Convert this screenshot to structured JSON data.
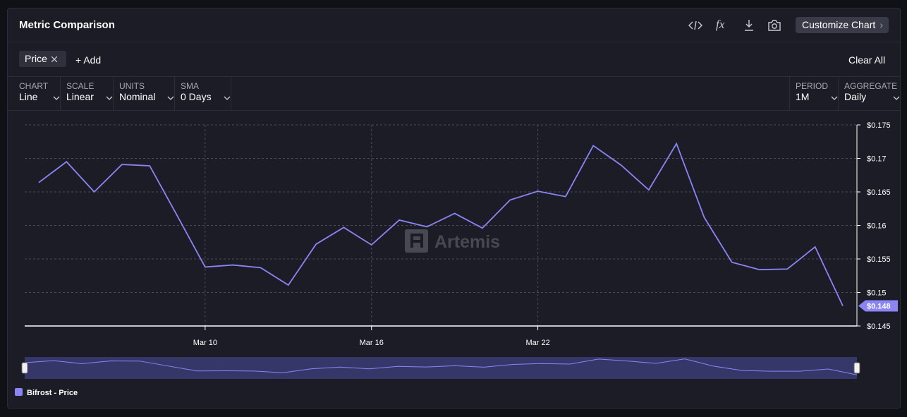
{
  "header": {
    "title": "Metric Comparison",
    "formula_icon": "fx",
    "button": "Customize Chart"
  },
  "filters": {
    "chip": "Price",
    "add": "+ Add",
    "clear": "Clear All"
  },
  "controls": [
    {
      "label": "CHART",
      "value": "Line"
    },
    {
      "label": "SCALE",
      "value": "Linear"
    },
    {
      "label": "UNITS",
      "value": "Nominal"
    },
    {
      "label": "SMA",
      "value": "0 Days"
    },
    {
      "label": "PERIOD",
      "value": "1M"
    },
    {
      "label": "AGGREGATE",
      "value": "Daily"
    }
  ],
  "watermark": "Artemis",
  "chart_data": {
    "type": "line",
    "categories": [
      null,
      null,
      null,
      null,
      null,
      null,
      "Mar 10",
      null,
      null,
      null,
      null,
      null,
      "Mar 16",
      null,
      null,
      null,
      null,
      null,
      "Mar 22",
      null,
      null,
      null,
      null,
      null,
      null,
      null,
      null,
      null,
      null,
      null
    ],
    "series": [
      {
        "name": "Bifrost - Price",
        "color": "#8a84f5",
        "values": [
          0.1664,
          0.1695,
          0.165,
          0.1691,
          0.1689,
          0.1614,
          0.1538,
          0.1541,
          0.1537,
          0.1511,
          0.1572,
          0.1597,
          0.1571,
          0.1608,
          0.1598,
          0.1618,
          0.1596,
          0.1638,
          0.1651,
          0.1643,
          0.1719,
          0.169,
          0.1653,
          0.1722,
          0.1612,
          0.1545,
          0.1534,
          0.1535,
          0.1568,
          0.148
        ],
        "value_labels": [
          null,
          null,
          null,
          null,
          null,
          null,
          null,
          null,
          null,
          null,
          null,
          null,
          null,
          null,
          null,
          null,
          null,
          null,
          null,
          null,
          null,
          null,
          null,
          null,
          null,
          null,
          null,
          null,
          null,
          "$0.148"
        ]
      }
    ],
    "ylim": [
      0.145,
      0.175
    ],
    "yticks": [
      {
        "value": 0.145,
        "label": "$0.145"
      },
      {
        "value": 0.15,
        "label": "$0.15"
      },
      {
        "value": 0.155,
        "label": "$0.155"
      },
      {
        "value": 0.16,
        "label": "$0.16"
      },
      {
        "value": 0.165,
        "label": "$0.165"
      },
      {
        "value": 0.17,
        "label": "$0.17"
      },
      {
        "value": 0.175,
        "label": "$0.175"
      }
    ],
    "grid": true
  }
}
